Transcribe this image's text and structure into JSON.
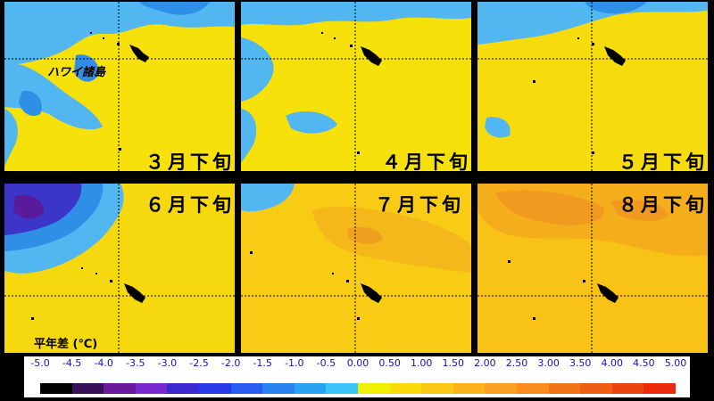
{
  "region_label": "ハワイ諸島",
  "panels": [
    {
      "id": "p1",
      "label": "３月下旬"
    },
    {
      "id": "p2",
      "label": "４月下旬"
    },
    {
      "id": "p3",
      "label": "５月下旬"
    },
    {
      "id": "p4",
      "label": "６月下旬"
    },
    {
      "id": "p5",
      "label": "７月下旬"
    },
    {
      "id": "p6",
      "label": "８月下旬"
    }
  ],
  "legend": {
    "title": "平年差 (℃)",
    "ticks": [
      "-5.0",
      "-4.5",
      "-4.0",
      "-3.5",
      "-3.0",
      "-2.5",
      "-2.0",
      "-1.5",
      "-1.0",
      "-0.5",
      "0.00",
      "0.50",
      "1.00",
      "1.50",
      "2.00",
      "2.50",
      "3.00",
      "3.50",
      "4.00",
      "4.50",
      "5.00"
    ],
    "colors": [
      "#000000",
      "#3a0f5a",
      "#6a1a9a",
      "#7a2acc",
      "#3a2ad0",
      "#2a3ae6",
      "#2a5cf0",
      "#2a82f0",
      "#2aa4f2",
      "#3ac6f6",
      "#f0f000",
      "#fadc0a",
      "#f8c814",
      "#f8b41a",
      "#f8a020",
      "#f88c1e",
      "#f27418",
      "#ee5e14",
      "#ea4410",
      "#e82c0c"
    ]
  }
}
